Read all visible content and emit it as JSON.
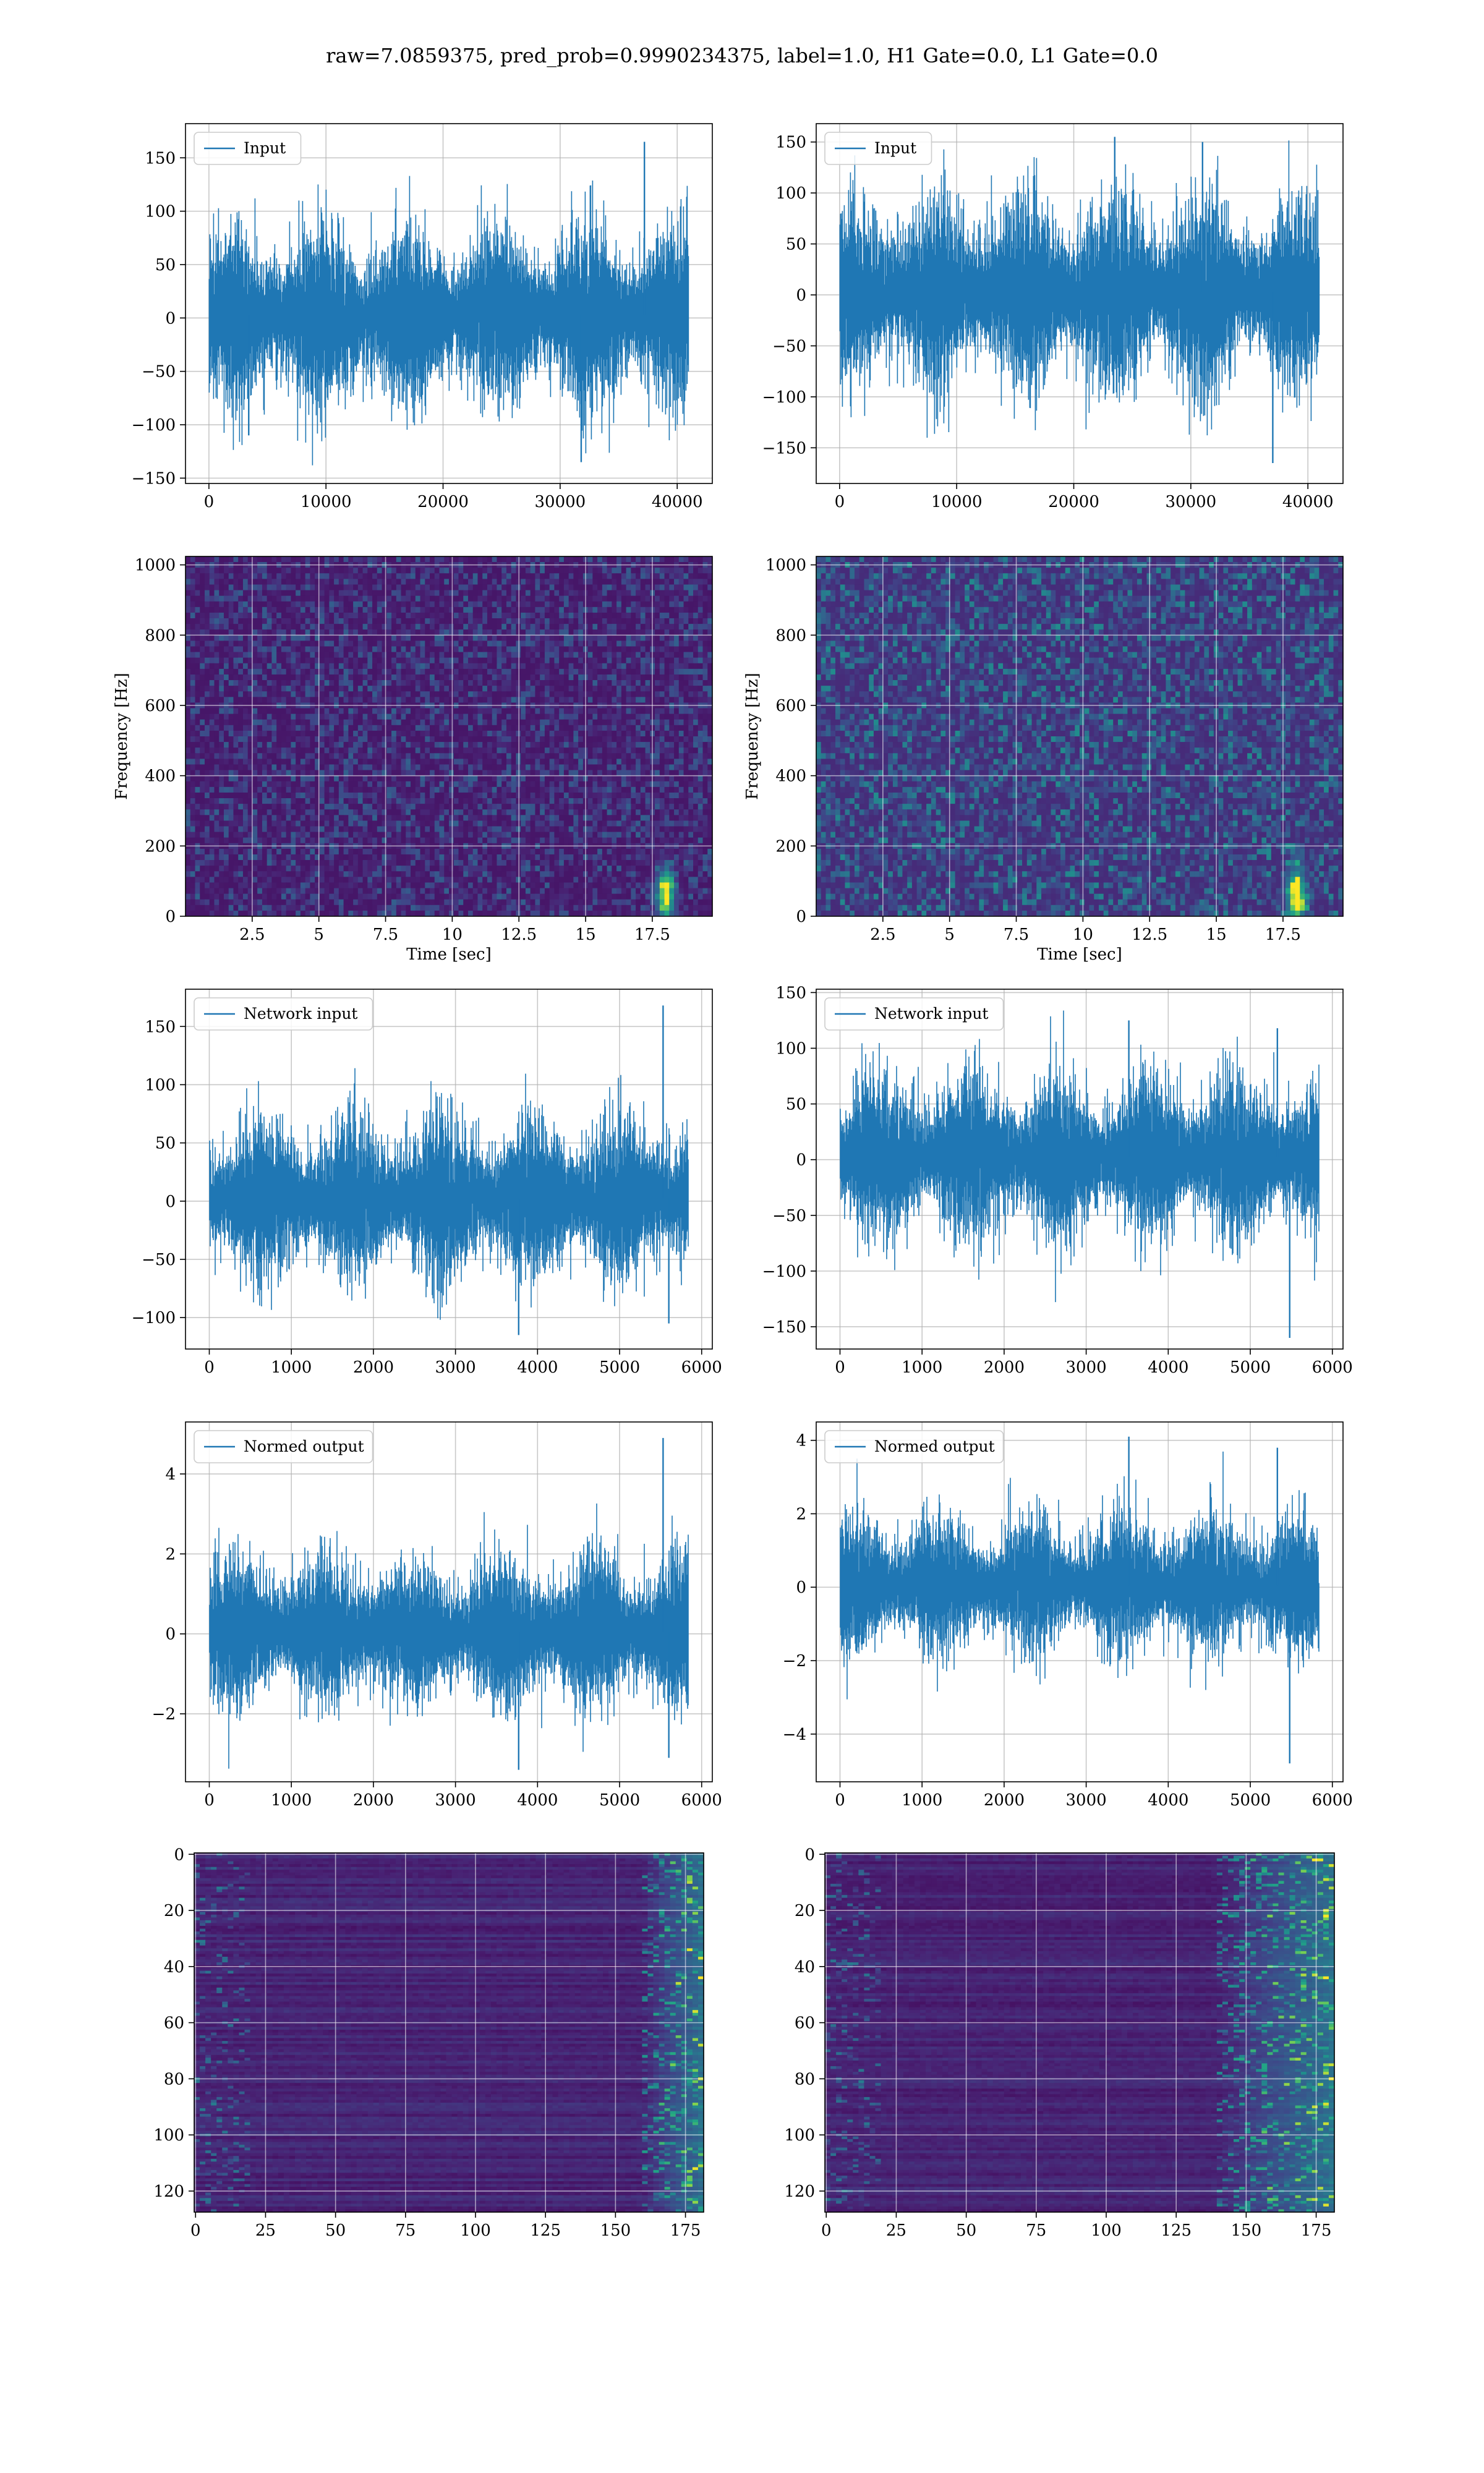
{
  "figure": {
    "title": "raw=7.0859375, pred_prob=0.9990234375, label=1.0, H1 Gate=0.0, L1 Gate=0.0",
    "line_color": "#1f77b4",
    "colormap": "viridis",
    "grid": true
  },
  "chart_data": [
    {
      "type": "line",
      "legend": "Input",
      "legend_position": "top-left",
      "xlim": [
        -2000,
        43000
      ],
      "ylim": [
        -155,
        182
      ],
      "xticks": [
        0,
        10000,
        20000,
        30000,
        40000
      ],
      "yticks": [
        -150,
        -100,
        -50,
        0,
        50,
        100,
        150
      ],
      "n_points": 40960,
      "envelope": [
        -85,
        90
      ],
      "amplitude_range": [
        -135,
        165
      ],
      "peaks": [
        {
          "x": 37200,
          "y": 165
        },
        {
          "x": 31800,
          "y": -135
        },
        {
          "x": 3400,
          "y": -110
        }
      ]
    },
    {
      "type": "line",
      "legend": "Input",
      "legend_position": "top-left",
      "xlim": [
        -2000,
        43000
      ],
      "ylim": [
        -185,
        168
      ],
      "xticks": [
        0,
        10000,
        20000,
        30000,
        40000
      ],
      "yticks": [
        -150,
        -100,
        -50,
        0,
        50,
        100,
        150
      ],
      "n_points": 40960,
      "envelope": [
        -95,
        100
      ],
      "amplitude_range": [
        -165,
        155
      ],
      "peaks": [
        {
          "x": 37000,
          "y": -165
        },
        {
          "x": 23500,
          "y": 155
        },
        {
          "x": 31000,
          "y": 150
        }
      ]
    },
    {
      "type": "heatmap",
      "xlabel": "Time [sec]",
      "ylabel": "Frequency [Hz]",
      "xlim": [
        0,
        19.75
      ],
      "ylim": [
        0,
        1024
      ],
      "xticks": [
        2.5,
        5.0,
        7.5,
        10.0,
        12.5,
        15.0,
        17.5
      ],
      "yticks": [
        0,
        200,
        400,
        600,
        800,
        1000
      ],
      "hot_spot": {
        "time": 18.0,
        "frequency": 60
      }
    },
    {
      "type": "heatmap",
      "xlabel": "Time [sec]",
      "ylabel": "Frequency [Hz]",
      "xlim": [
        0,
        19.75
      ],
      "ylim": [
        0,
        1024
      ],
      "xticks": [
        2.5,
        5.0,
        7.5,
        10.0,
        12.5,
        15.0,
        17.5
      ],
      "yticks": [
        0,
        200,
        400,
        600,
        800,
        1000
      ],
      "hot_spot": {
        "time": 18.0,
        "frequency": 60
      }
    },
    {
      "type": "line",
      "legend": "Network input",
      "legend_position": "top-left",
      "xlim": [
        -290,
        6130
      ],
      "ylim": [
        -127,
        182
      ],
      "xticks": [
        0,
        1000,
        2000,
        3000,
        4000,
        5000,
        6000
      ],
      "yticks": [
        -100,
        -50,
        0,
        50,
        100,
        150
      ],
      "n_points": 5840,
      "envelope": [
        -70,
        75
      ],
      "amplitude_range": [
        -115,
        168
      ],
      "peaks": [
        {
          "x": 5530,
          "y": 168
        },
        {
          "x": 3770,
          "y": -115
        },
        {
          "x": 5600,
          "y": -105
        }
      ]
    },
    {
      "type": "line",
      "legend": "Network input",
      "legend_position": "top-left",
      "xlim": [
        -290,
        6130
      ],
      "ylim": [
        -170,
        153
      ],
      "xticks": [
        0,
        1000,
        2000,
        3000,
        4000,
        5000,
        6000
      ],
      "yticks": [
        -150,
        -100,
        -50,
        0,
        50,
        100,
        150
      ],
      "n_points": 5840,
      "envelope": [
        -75,
        80
      ],
      "amplitude_range": [
        -160,
        125
      ],
      "peaks": [
        {
          "x": 5480,
          "y": -160
        },
        {
          "x": 3520,
          "y": 125
        },
        {
          "x": 5330,
          "y": 118
        }
      ]
    },
    {
      "type": "line",
      "legend": "Normed output",
      "legend_position": "top-left",
      "xlim": [
        -290,
        6130
      ],
      "ylim": [
        -3.7,
        5.3
      ],
      "xticks": [
        0,
        1000,
        2000,
        3000,
        4000,
        5000,
        6000
      ],
      "yticks": [
        -2,
        0,
        2,
        4
      ],
      "n_points": 5840,
      "envelope": [
        -1.9,
        2.0
      ],
      "amplitude_range": [
        -3.4,
        4.9
      ],
      "peaks": [
        {
          "x": 5530,
          "y": 4.9
        },
        {
          "x": 3770,
          "y": -3.4
        },
        {
          "x": 5600,
          "y": -3.1
        }
      ]
    },
    {
      "type": "line",
      "legend": "Normed output",
      "legend_position": "top-left",
      "xlim": [
        -290,
        6130
      ],
      "ylim": [
        -5.3,
        4.5
      ],
      "xticks": [
        0,
        1000,
        2000,
        3000,
        4000,
        5000,
        6000
      ],
      "yticks": [
        -4,
        -2,
        0,
        2,
        4
      ],
      "n_points": 5840,
      "envelope": [
        -1.9,
        2.0
      ],
      "amplitude_range": [
        -4.8,
        4.1
      ],
      "peaks": [
        {
          "x": 5480,
          "y": -4.8
        },
        {
          "x": 3520,
          "y": 4.1
        },
        {
          "x": 5330,
          "y": 3.8
        }
      ]
    },
    {
      "type": "heatmap",
      "xlim": [
        -0.5,
        181.5
      ],
      "ylim": [
        127.5,
        -0.5
      ],
      "xticks": [
        0,
        25,
        50,
        75,
        100,
        125,
        150,
        175
      ],
      "yticks": [
        0,
        20,
        40,
        60,
        80,
        100,
        120
      ],
      "rows": 128,
      "cols": 182,
      "bright_columns_from": 160
    },
    {
      "type": "heatmap",
      "xlim": [
        -0.5,
        181.5
      ],
      "ylim": [
        127.5,
        -0.5
      ],
      "xticks": [
        0,
        25,
        50,
        75,
        100,
        125,
        150,
        175
      ],
      "yticks": [
        0,
        20,
        40,
        60,
        80,
        100,
        120
      ],
      "rows": 128,
      "cols": 182,
      "bright_columns_from": 140
    }
  ]
}
